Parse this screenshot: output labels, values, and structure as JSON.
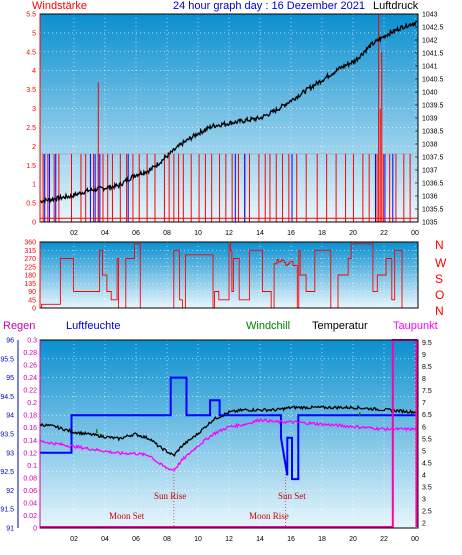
{
  "header": {
    "left": "Windstärke",
    "title": "24 hour graph day : 16 Dezember 2021",
    "right": "Luftdruck"
  },
  "middle_labels": [
    "N",
    "W",
    "S",
    "O",
    "N"
  ],
  "bottom_header": {
    "regen": "Regen",
    "luftfeuchte": "Luftfeuchte",
    "windchill": "Windchill",
    "temperatur": "Temperatur",
    "taupunkt": "Taupunkt"
  },
  "events": {
    "sun_rise": "Sun Rise",
    "sun_set": "Sun Set",
    "moon_set": "Moon Set",
    "moon_rise": "Moon Rise"
  },
  "colors": {
    "wind": "#ff0000",
    "gust": "#0000ff",
    "pressure": "#000000",
    "humidity": "#0000ff",
    "temperature": "#000000",
    "dewpoint": "#ff00ff",
    "windchill": "#008000",
    "rain": "#ff00aa",
    "panel_top": "#0b8fcf",
    "panel_bottom": "#e8f6fc"
  },
  "chart_data": [
    {
      "type": "line",
      "name": "wind_pressure",
      "x_ticks": [
        "02",
        "04",
        "06",
        "08",
        "10",
        "12",
        "14",
        "16",
        "18",
        "20",
        "22",
        "00"
      ],
      "y_left_ticks": [
        "0",
        "0.5",
        "1",
        "1.5",
        "2",
        "2.5",
        "3",
        "3.5",
        "4",
        "4.5",
        "5",
        "5.5"
      ],
      "y_left_lim": [
        0,
        5.5
      ],
      "y_right_ticks": [
        "1035",
        "1035.5",
        "1036",
        "1036.5",
        "1037",
        "1037.5",
        "1038",
        "1038.5",
        "1039",
        "1039.5",
        "1040",
        "1040.5",
        "1041",
        "1041.5",
        "1042",
        "1042.5",
        "1043"
      ],
      "y_right_lim": [
        1035,
        1043
      ],
      "pressure": {
        "x": [
          0,
          1,
          2,
          3,
          4,
          5,
          6,
          7,
          8,
          9,
          10,
          11,
          12,
          13,
          14,
          15,
          16,
          17,
          18,
          19,
          20,
          21,
          22,
          23,
          24
        ],
        "y": [
          1035.8,
          1035.9,
          1036.0,
          1036.2,
          1036.3,
          1036.4,
          1036.8,
          1037.0,
          1037.5,
          1038.0,
          1038.4,
          1038.7,
          1038.8,
          1038.9,
          1039.0,
          1039.3,
          1039.7,
          1040.1,
          1040.5,
          1040.9,
          1041.2,
          1041.8,
          1042.2,
          1042.5,
          1042.7
        ]
      }
    },
    {
      "type": "line",
      "name": "wind_direction",
      "x_ticks": [
        "02",
        "04",
        "06",
        "08",
        "10",
        "12",
        "14",
        "16",
        "18",
        "20",
        "22",
        "00"
      ],
      "y_ticks": [
        "0",
        "45",
        "90",
        "135",
        "180",
        "225",
        "270",
        "315",
        "360"
      ],
      "ylim": [
        0,
        360
      ]
    },
    {
      "type": "line",
      "name": "temp_humidity",
      "x_ticks": [
        "02",
        "04",
        "06",
        "08",
        "10",
        "12",
        "14",
        "16",
        "18",
        "20",
        "22",
        "00"
      ],
      "y_humidity_ticks": [
        "91",
        "91.5",
        "92",
        "92.5",
        "93",
        "93.5",
        "94",
        "94.5",
        "95",
        "95.5",
        "96"
      ],
      "y_humidity_lim": [
        91,
        96
      ],
      "y_rain_ticks": [
        "0",
        "0.02",
        "0.04",
        "0.06",
        "0.08",
        "0.1",
        "0.12",
        "0.14",
        "0.16",
        "0.18",
        "0.2",
        "0.22",
        "0.24",
        "0.26",
        "0.28",
        "0.3"
      ],
      "y_rain_lim": [
        0,
        0.3
      ],
      "y_temp_ticks": [
        "2",
        "2.5",
        "3",
        "3.5",
        "4",
        "4.5",
        "5",
        "5.5",
        "6",
        "6.5",
        "7",
        "7.5",
        "8",
        "8.5",
        "9",
        "9.5"
      ],
      "y_temp_lim": [
        1.8,
        9.6
      ],
      "temperature": {
        "x": [
          0,
          1,
          2,
          3,
          4,
          5,
          6,
          7,
          7.5,
          8,
          8.5,
          9,
          10,
          11,
          12,
          13,
          14,
          15,
          16,
          18,
          20,
          22,
          24
        ],
        "y": [
          6.1,
          6.0,
          5.8,
          5.7,
          5.6,
          5.5,
          5.7,
          5.5,
          5.2,
          5.0,
          4.8,
          5.2,
          5.7,
          6.3,
          6.6,
          6.7,
          6.7,
          6.7,
          6.8,
          6.8,
          6.8,
          6.7,
          6.6
        ]
      },
      "dewpoint": {
        "x": [
          0,
          1,
          2,
          3,
          4,
          5,
          6,
          7,
          7.5,
          8,
          8.5,
          9,
          10,
          11,
          12,
          13,
          14,
          15,
          16,
          18,
          20,
          22,
          24
        ],
        "y": [
          5.4,
          5.3,
          5.2,
          5.1,
          5.0,
          4.9,
          4.9,
          4.8,
          4.5,
          4.3,
          4.2,
          4.6,
          5.2,
          5.7,
          6.0,
          6.1,
          6.3,
          6.2,
          6.2,
          6.1,
          6.0,
          5.9,
          5.9
        ]
      }
    }
  ]
}
